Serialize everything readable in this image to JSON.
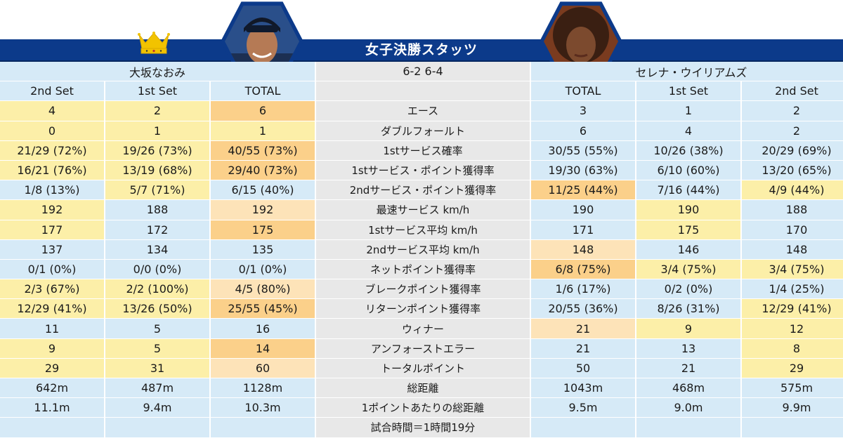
{
  "header": {
    "title": "女子決勝スタッツ",
    "score": "6-2 6-4"
  },
  "players": {
    "left": {
      "name": "大坂なおみ"
    },
    "right": {
      "name": "セレナ・ウイリアムズ"
    }
  },
  "columns": {
    "left": [
      "2nd Set",
      "1st Set",
      "TOTAL"
    ],
    "right": [
      "TOTAL",
      "1st Set",
      "2nd Set"
    ]
  },
  "rows": [
    {
      "label": "エース",
      "left": [
        "4",
        "2",
        "6"
      ],
      "right": [
        "3",
        "1",
        "2"
      ]
    },
    {
      "label": "ダブルフォールト",
      "left": [
        "0",
        "1",
        "1"
      ],
      "right": [
        "6",
        "4",
        "2"
      ]
    },
    {
      "label": "1stサービス確率",
      "left": [
        "21/29 (72%)",
        "19/26 (73%)",
        "40/55 (73%)"
      ],
      "right": [
        "30/55 (55%)",
        "10/26 (38%)",
        "20/29 (69%)"
      ]
    },
    {
      "label": "1stサービス・ポイント獲得率",
      "left": [
        "16/21 (76%)",
        "13/19 (68%)",
        "29/40 (73%)"
      ],
      "right": [
        "19/30 (63%)",
        "6/10 (60%)",
        "13/20 (65%)"
      ]
    },
    {
      "label": "2ndサービス・ポイント獲得率",
      "left": [
        "1/8 (13%)",
        "5/7 (71%)",
        "6/15 (40%)"
      ],
      "right": [
        "11/25 (44%)",
        "7/16 (44%)",
        "4/9 (44%)"
      ]
    },
    {
      "label": "最速サービス km/h",
      "left": [
        "192",
        "188",
        "192"
      ],
      "right": [
        "190",
        "190",
        "188"
      ]
    },
    {
      "label": "1stサービス平均 km/h",
      "left": [
        "177",
        "172",
        "175"
      ],
      "right": [
        "171",
        "175",
        "170"
      ]
    },
    {
      "label": "2ndサービス平均 km/h",
      "left": [
        "137",
        "134",
        "135"
      ],
      "right": [
        "148",
        "146",
        "148"
      ]
    },
    {
      "label": "ネットポイント獲得率",
      "left": [
        "0/1 (0%)",
        "0/0 (0%)",
        "0/1 (0%)"
      ],
      "right": [
        "6/8 (75%)",
        "3/4 (75%)",
        "3/4 (75%)"
      ]
    },
    {
      "label": "ブレークポイント獲得率",
      "left": [
        "2/3 (67%)",
        "2/2 (100%)",
        "4/5 (80%)"
      ],
      "right": [
        "1/6 (17%)",
        "0/2 (0%)",
        "1/4 (25%)"
      ]
    },
    {
      "label": "リターンポイント獲得率",
      "left": [
        "12/29 (41%)",
        "13/26 (50%)",
        "25/55 (45%)"
      ],
      "right": [
        "20/55 (36%)",
        "8/26 (31%)",
        "12/29 (41%)"
      ]
    },
    {
      "label": "ウィナー",
      "left": [
        "11",
        "5",
        "16"
      ],
      "right": [
        "21",
        "9",
        "12"
      ]
    },
    {
      "label": "アンフォーストエラー",
      "left": [
        "9",
        "5",
        "14"
      ],
      "right": [
        "21",
        "13",
        "8"
      ]
    },
    {
      "label": "トータルポイント",
      "left": [
        "29",
        "31",
        "60"
      ],
      "right": [
        "50",
        "21",
        "29"
      ]
    },
    {
      "label": "総距離",
      "left": [
        "642m",
        "487m",
        "1128m"
      ],
      "right": [
        "1043m",
        "468m",
        "575m"
      ]
    },
    {
      "label": "1ポイントあたりの総距離",
      "left": [
        "11.1m",
        "9.4m",
        "10.3m"
      ],
      "right": [
        "9.5m",
        "9.0m",
        "9.9m"
      ]
    },
    {
      "label": "試合時間＝1時間19分",
      "left": [
        "",
        "",
        ""
      ],
      "right": [
        "",
        "",
        ""
      ]
    }
  ],
  "row_colors": [
    {
      "left": [
        "y",
        "y",
        "o"
      ],
      "right": [
        "b",
        "b",
        "b"
      ]
    },
    {
      "left": [
        "y",
        "y",
        "y"
      ],
      "right": [
        "b",
        "b",
        "b"
      ]
    },
    {
      "left": [
        "y",
        "y",
        "o"
      ],
      "right": [
        "b",
        "b",
        "b"
      ]
    },
    {
      "left": [
        "y",
        "y",
        "o"
      ],
      "right": [
        "b",
        "b",
        "b"
      ]
    },
    {
      "left": [
        "b",
        "y",
        "b"
      ],
      "right": [
        "o",
        "b",
        "y"
      ]
    },
    {
      "left": [
        "y",
        "b",
        "lo"
      ],
      "right": [
        "b",
        "y",
        "b"
      ]
    },
    {
      "left": [
        "y",
        "b",
        "o"
      ],
      "right": [
        "b",
        "y",
        "b"
      ]
    },
    {
      "left": [
        "b",
        "b",
        "b"
      ],
      "right": [
        "lo",
        "b",
        "b"
      ]
    },
    {
      "left": [
        "b",
        "b",
        "b"
      ],
      "right": [
        "o",
        "y",
        "y"
      ]
    },
    {
      "left": [
        "y",
        "y",
        "lo"
      ],
      "right": [
        "b",
        "b",
        "b"
      ]
    },
    {
      "left": [
        "y",
        "y",
        "o"
      ],
      "right": [
        "b",
        "b",
        "y"
      ]
    },
    {
      "left": [
        "b",
        "b",
        "b"
      ],
      "right": [
        "lo",
        "y",
        "y"
      ]
    },
    {
      "left": [
        "y",
        "y",
        "o"
      ],
      "right": [
        "b",
        "b",
        "y"
      ]
    },
    {
      "left": [
        "y",
        "y",
        "lo"
      ],
      "right": [
        "b",
        "b",
        "y"
      ]
    },
    {
      "left": [
        "b",
        "b",
        "b"
      ],
      "right": [
        "b",
        "b",
        "b"
      ]
    },
    {
      "left": [
        "b",
        "b",
        "b"
      ],
      "right": [
        "b",
        "b",
        "b"
      ]
    },
    {
      "left": [
        "b",
        "b",
        "b"
      ],
      "right": [
        "b",
        "b",
        "b"
      ]
    }
  ],
  "colors": {
    "header": "#0c3a8a",
    "blue": "#d6eaf7",
    "grey": "#e8e8e8",
    "yellow": "#fcefa8",
    "orange": "#fbd08a",
    "light_orange": "#fde3b8",
    "crown": "#f2c300"
  },
  "icons": {
    "crown": "crown-icon"
  }
}
